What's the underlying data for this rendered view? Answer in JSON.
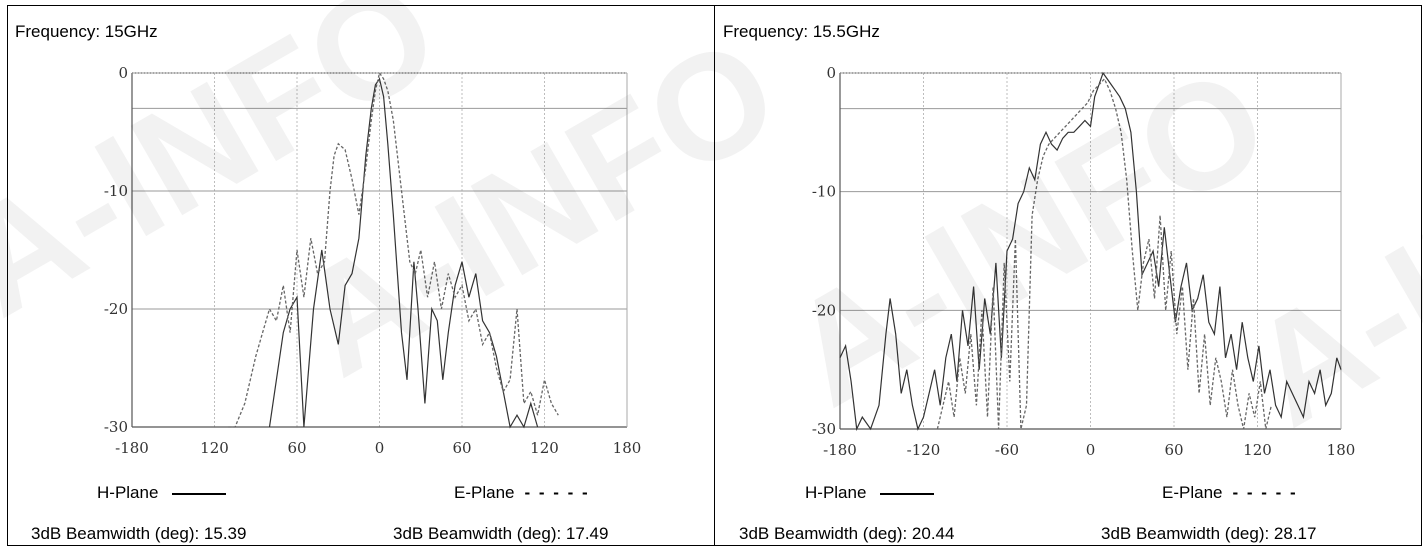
{
  "watermark": "A-INFO",
  "panels": [
    {
      "frequency_label": "Frequency: 15GHz",
      "legend_h": "H-Plane",
      "legend_e": "E-Plane",
      "legend_e_symbol": "- - - - -",
      "bw_h": "3dB Beamwidth (deg): 15.39",
      "bw_e": "3dB Beamwidth (deg): 17.49"
    },
    {
      "frequency_label": "Frequency: 15.5GHz",
      "legend_h": "H-Plane",
      "legend_e": "E-Plane",
      "legend_e_symbol": "- - - - -",
      "bw_h": "3dB Beamwidth (deg): 20.44",
      "bw_e": "3dB Beamwidth (deg): 28.17"
    }
  ],
  "chart_data": [
    {
      "type": "line",
      "xlim": [
        -180,
        180
      ],
      "ylim": [
        -30,
        0
      ],
      "xticks": [
        "-180",
        "120",
        "60",
        "0",
        "60",
        "120",
        "180"
      ],
      "yticks": [
        "0",
        "-10",
        "-20",
        "-30"
      ],
      "reference_line": -3,
      "grid": true,
      "series": [
        {
          "name": "H-Plane",
          "style": "solid",
          "x": [
            -80,
            -70,
            -65,
            -60,
            -55,
            -48,
            -42,
            -36,
            -30,
            -25,
            -20,
            -15,
            -10,
            -6,
            -3,
            0,
            3,
            6,
            10,
            13,
            16,
            20,
            25,
            28,
            33,
            38,
            42,
            46,
            50,
            55,
            60,
            65,
            70,
            75,
            80,
            85,
            90,
            95,
            100,
            105,
            110,
            115
          ],
          "y": [
            -30,
            -22,
            -20,
            -19,
            -30,
            -20,
            -15,
            -20,
            -23,
            -18,
            -17,
            -14,
            -7,
            -3,
            -1,
            -0.5,
            -2,
            -6,
            -12,
            -17,
            -22,
            -26,
            -16,
            -20,
            -28,
            -20,
            -21,
            -26,
            -22,
            -18,
            -16,
            -19,
            -17,
            -21,
            -22,
            -24,
            -27,
            -30,
            -29,
            -30,
            -28,
            -30
          ]
        },
        {
          "name": "E-Plane",
          "style": "dashed",
          "x": [
            -110,
            -105,
            -98,
            -90,
            -85,
            -80,
            -75,
            -70,
            -65,
            -60,
            -55,
            -50,
            -45,
            -40,
            -36,
            -33,
            -30,
            -25,
            -20,
            -15,
            -10,
            -6,
            -3,
            0,
            3,
            6,
            10,
            14,
            18,
            22,
            26,
            30,
            35,
            40,
            45,
            50,
            55,
            60,
            65,
            70,
            75,
            80,
            85,
            90,
            95,
            100,
            105,
            110,
            115,
            120,
            125,
            130
          ],
          "y": [
            -30,
            -30,
            -28,
            -24,
            -22,
            -20,
            -21,
            -18,
            -22,
            -15,
            -19,
            -14,
            -17,
            -16,
            -10,
            -7,
            -6,
            -6.5,
            -9,
            -12,
            -8,
            -4,
            -1.5,
            0,
            -0.5,
            -1.5,
            -4,
            -8,
            -12,
            -16,
            -17,
            -15,
            -19,
            -16,
            -20,
            -17,
            -19,
            -18,
            -21,
            -20,
            -23,
            -22,
            -25,
            -27,
            -26,
            -20,
            -28,
            -27,
            -29,
            -26,
            -28,
            -29
          ]
        }
      ]
    },
    {
      "type": "line",
      "xlim": [
        -180,
        180
      ],
      "ylim": [
        -30,
        0
      ],
      "xticks": [
        "-180",
        "-120",
        "-60",
        "0",
        "60",
        "120",
        "180"
      ],
      "yticks": [
        "0",
        "-10",
        "-20",
        "-30"
      ],
      "reference_line": -3,
      "grid": true,
      "series": [
        {
          "name": "H-Plane",
          "style": "solid",
          "x": [
            -180,
            -176,
            -172,
            -168,
            -164,
            -158,
            -152,
            -147,
            -144,
            -140,
            -136,
            -132,
            -128,
            -124,
            -120,
            -116,
            -112,
            -108,
            -104,
            -100,
            -96,
            -92,
            -88,
            -84,
            -80,
            -76,
            -72,
            -68,
            -64,
            -60,
            -56,
            -52,
            -48,
            -44,
            -40,
            -36,
            -32,
            -28,
            -24,
            -20,
            -16,
            -12,
            -8,
            -4,
            0,
            3,
            6,
            9,
            12,
            15,
            18,
            21,
            25,
            29,
            33,
            37,
            41,
            45,
            49,
            53,
            57,
            61,
            65,
            69,
            73,
            77,
            81,
            85,
            89,
            93,
            97,
            101,
            105,
            109,
            113,
            117,
            121,
            125,
            129,
            133,
            137,
            141,
            145,
            149,
            153,
            157,
            161,
            165,
            169,
            173,
            177,
            180
          ],
          "y": [
            -24,
            -23,
            -26,
            -30,
            -29,
            -30,
            -28,
            -22,
            -19,
            -22,
            -27,
            -25,
            -28,
            -30,
            -29,
            -27,
            -25,
            -28,
            -24,
            -22,
            -26,
            -20,
            -23,
            -18,
            -25,
            -19,
            -22,
            -16,
            -24,
            -15,
            -14,
            -11,
            -10,
            -8,
            -9,
            -6,
            -5,
            -6,
            -6.5,
            -5.5,
            -5,
            -5,
            -4.5,
            -4,
            -4.5,
            -2,
            -1,
            0,
            -0.5,
            -1,
            -1.5,
            -2,
            -3,
            -5,
            -10,
            -17,
            -16,
            -15,
            -18,
            -13,
            -17,
            -21,
            -18,
            -16,
            -20,
            -19,
            -17,
            -21,
            -22,
            -18,
            -24,
            -22,
            -25,
            -21,
            -24,
            -26,
            -23,
            -27,
            -25,
            -28,
            -29,
            -26,
            -27,
            -28,
            -29,
            -26,
            -27,
            -25,
            -28,
            -27,
            -24,
            -25
          ]
        },
        {
          "name": "E-Plane",
          "style": "dashed",
          "x": [
            -110,
            -106,
            -102,
            -98,
            -94,
            -90,
            -86,
            -82,
            -78,
            -74,
            -70,
            -66,
            -62,
            -58,
            -54,
            -50,
            -46,
            -42,
            -38,
            -34,
            -30,
            -26,
            -22,
            -18,
            -14,
            -10,
            -6,
            -2,
            2,
            6,
            10,
            14,
            18,
            22,
            26,
            30,
            34,
            38,
            42,
            46,
            50,
            54,
            58,
            62,
            66,
            70,
            74,
            78,
            82,
            86,
            90,
            94,
            98,
            102,
            106,
            110,
            114,
            118,
            122,
            126,
            130
          ],
          "y": [
            -30,
            -28,
            -26,
            -29,
            -24,
            -27,
            -22,
            -28,
            -20,
            -29,
            -18,
            -30,
            -16,
            -26,
            -14,
            -30,
            -28,
            -12,
            -9,
            -7,
            -6,
            -5.5,
            -5,
            -4.5,
            -4,
            -3.5,
            -3,
            -2.5,
            -1.5,
            -1,
            -0.5,
            -1.5,
            -3,
            -5,
            -9,
            -15,
            -20,
            -16,
            -14,
            -19,
            -12,
            -20,
            -15,
            -22,
            -18,
            -25,
            -19,
            -27,
            -22,
            -28,
            -24,
            -26,
            -29,
            -25,
            -28,
            -30,
            -27,
            -29,
            -26,
            -30,
            -28
          ]
        }
      ]
    }
  ]
}
